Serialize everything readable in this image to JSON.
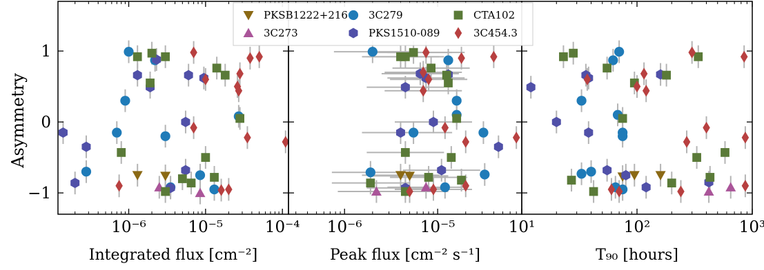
{
  "chart_data": [
    {
      "type": "scatter",
      "panel": "integrated-flux",
      "xlabel": "Integrated flux [cm⁻²]",
      "ylabel": "Asymmetry",
      "xscale": "log",
      "xlim": [
        1.2e-07,
        0.00012
      ],
      "ylim": [
        -1.3,
        1.7
      ],
      "xticks": [
        1e-06,
        1e-05,
        0.0001
      ],
      "xtick_labels": [
        "10⁻⁶",
        "10⁻⁵",
        "10⁻⁴"
      ],
      "yticks": [
        -1,
        0,
        1
      ],
      "ytick_labels": [
        "−1",
        "0",
        "1"
      ],
      "series": [
        {
          "name": "PKSB1222+216",
          "points": [
            [
              1.3e-06,
              -0.75
            ],
            [
              3e-06,
              -0.76
            ]
          ]
        },
        {
          "name": "3C273",
          "points": [
            [
              2.5e-06,
              -0.92
            ],
            [
              8.5e-06,
              -1.0
            ]
          ]
        },
        {
          "name": "3C279",
          "points": [
            [
              1e-06,
              0.99
            ],
            [
              2.2e-06,
              0.87
            ],
            [
              9e-07,
              0.3
            ],
            [
              7e-07,
              -0.15
            ],
            [
              3e-06,
              -0.2
            ],
            [
              2.8e-07,
              -0.7
            ],
            [
              3.5e-06,
              -0.92
            ],
            [
              8.5e-06,
              -0.75
            ],
            [
              1.3e-05,
              -0.95
            ],
            [
              2.7e-05,
              0.08
            ]
          ]
        },
        {
          "name": "PKS1510-089",
          "points": [
            [
              1.4e-07,
              -0.15
            ],
            [
              2e-07,
              -0.86
            ],
            [
              2.8e-07,
              -0.35
            ],
            [
              1.3e-06,
              0.66
            ],
            [
              1.9e-06,
              0.49
            ],
            [
              2.3e-06,
              0.88
            ],
            [
              6e-06,
              0.66
            ],
            [
              9.5e-06,
              0.62
            ],
            [
              5.5e-06,
              0.0
            ],
            [
              5.5e-06,
              -0.68
            ],
            [
              3.5e-06,
              -0.93
            ]
          ]
        },
        {
          "name": "CTA102",
          "points": [
            [
              1.3e-06,
              0.92
            ],
            [
              2e-06,
              0.97
            ],
            [
              3e-06,
              0.92
            ],
            [
              1.9e-06,
              0.55
            ],
            [
              8e-07,
              -0.43
            ],
            [
              3e-06,
              -0.98
            ],
            [
              5e-06,
              -0.8
            ],
            [
              6.5e-06,
              -0.86
            ],
            [
              1e-05,
              -0.5
            ],
            [
              1.3e-05,
              -0.78
            ],
            [
              1.4e-05,
              0.76
            ],
            [
              1.8e-05,
              0.66
            ],
            [
              2.8e-05,
              0.05
            ]
          ]
        },
        {
          "name": "3C454.3",
          "points": [
            [
              7.5e-07,
              -0.9
            ],
            [
              7e-06,
              0.98
            ],
            [
              1e-05,
              0.6
            ],
            [
              7e-06,
              -0.08
            ],
            [
              1.6e-05,
              -0.96
            ],
            [
              2e-05,
              -0.95
            ],
            [
              2.6e-05,
              0.5
            ],
            [
              2.7e-05,
              0.44
            ],
            [
              2.8e-05,
              0.68
            ],
            [
              3.8e-05,
              0.9
            ],
            [
              5e-05,
              0.92
            ],
            [
              3.5e-05,
              -0.22
            ],
            [
              0.00011,
              -0.28
            ]
          ]
        }
      ]
    },
    {
      "type": "scatter",
      "panel": "peak-flux",
      "xlabel": "Peak flux [cm⁻² s⁻¹]",
      "xscale": "log",
      "xlim": [
        2.5e-07,
        8e-05
      ],
      "ylim": [
        -1.3,
        1.7
      ],
      "xticks": [
        1e-06,
        1e-05
      ],
      "xtick_labels": [
        "10⁻⁶",
        "10⁻⁵"
      ],
      "series": [
        {
          "name": "PKSB1222+216",
          "points": [
            [
              4e-06,
              -0.75
            ],
            [
              5e-06,
              -0.76
            ]
          ]
        },
        {
          "name": "3C273",
          "points": [
            [
              2.2e-06,
              -0.98
            ],
            [
              7.5e-06,
              -0.92
            ]
          ]
        },
        {
          "name": "3C279",
          "points": [
            [
              2e-06,
              0.99
            ],
            [
              1.3e-05,
              0.87
            ],
            [
              1.6e-05,
              0.3
            ],
            [
              5.5e-06,
              -0.15
            ],
            [
              3.1e-05,
              -0.15
            ],
            [
              1.9e-06,
              -0.71
            ],
            [
              3.2e-05,
              -0.74
            ],
            [
              1.2e-05,
              -0.92
            ],
            [
              1.6e-05,
              0.1
            ]
          ]
        },
        {
          "name": "PKS1510-089",
          "points": [
            [
              4.5e-06,
              0.49
            ],
            [
              6.5e-06,
              0.68
            ],
            [
              7.5e-06,
              0.62
            ],
            [
              1.3e-05,
              0.67
            ],
            [
              4e-06,
              -0.15
            ],
            [
              9e-06,
              -0.0
            ],
            [
              4.5e-05,
              -0.35
            ],
            [
              1.1e-05,
              -0.68
            ],
            [
              4.5e-06,
              -0.93
            ]
          ]
        },
        {
          "name": "CTA102",
          "points": [
            [
              4e-06,
              0.92
            ],
            [
              4.5e-06,
              0.92
            ],
            [
              5.5e-06,
              0.98
            ],
            [
              8.5e-06,
              0.76
            ],
            [
              1.25e-05,
              0.66
            ],
            [
              1.3e-05,
              0.55
            ],
            [
              1.6e-05,
              0.05
            ],
            [
              4.5e-06,
              -0.43
            ],
            [
              1.4e-05,
              -0.5
            ],
            [
              8e-06,
              -0.78
            ],
            [
              1.8e-05,
              -0.82
            ],
            [
              1.9e-06,
              -0.86
            ],
            [
              4.5e-06,
              -0.98
            ]
          ]
        },
        {
          "name": "3C454.3",
          "points": [
            [
              7.5e-06,
              0.98
            ],
            [
              7e-06,
              0.7
            ],
            [
              8e-06,
              0.6
            ],
            [
              7e-06,
              0.44
            ],
            [
              1.2e-05,
              -0.08
            ],
            [
              1.8e-05,
              0.9
            ],
            [
              4e-05,
              0.92
            ],
            [
              2e-05,
              -0.28
            ],
            [
              7e-05,
              -0.22
            ],
            [
              2e-05,
              -0.9
            ],
            [
              5e-06,
              -0.98
            ],
            [
              9e-06,
              -0.95
            ]
          ]
        }
      ]
    },
    {
      "type": "scatter",
      "panel": "t90",
      "xlabel": "T₉₀ [hours]",
      "xscale": "log",
      "xlim": [
        10,
        1000
      ],
      "ylim": [
        -1.3,
        1.7
      ],
      "xticks": [
        10,
        100,
        1000
      ],
      "xtick_labels": [
        "10¹",
        "10²",
        "10³"
      ],
      "series": [
        {
          "name": "PKSB1222+216",
          "points": [
            [
              75,
              -0.77
            ],
            [
              95,
              -0.75
            ],
            [
              160,
              -0.75
            ]
          ]
        },
        {
          "name": "3C273",
          "points": [
            [
              420,
              -0.98
            ],
            [
              650,
              -0.92
            ]
          ]
        },
        {
          "name": "3C279",
          "points": [
            [
              70,
              0.99
            ],
            [
              62,
              0.87
            ],
            [
              33,
              0.3
            ],
            [
              68,
              0.1
            ],
            [
              75,
              -0.15
            ],
            [
              40,
              -0.7
            ],
            [
              33,
              -0.73
            ],
            [
              75,
              -0.2
            ],
            [
              65,
              -0.92
            ],
            [
              75,
              -0.95
            ]
          ]
        },
        {
          "name": "PKS1510-089",
          "points": [
            [
              12,
              0.49
            ],
            [
              20,
              0.0
            ],
            [
              36,
              0.66
            ],
            [
              38,
              0.62
            ],
            [
              38,
              -0.15
            ],
            [
              55,
              -0.68
            ],
            [
              80,
              -0.75
            ],
            [
              120,
              -0.92
            ],
            [
              420,
              -0.85
            ],
            [
              160,
              0.67
            ]
          ]
        },
        {
          "name": "CTA102",
          "points": [
            [
              23,
              0.92
            ],
            [
              28,
              0.97
            ],
            [
              55,
              0.76
            ],
            [
              75,
              0.05
            ],
            [
              95,
              0.55
            ],
            [
              180,
              0.66
            ],
            [
              340,
              0.92
            ],
            [
              330,
              -0.5
            ],
            [
              430,
              -0.78
            ],
            [
              580,
              -0.43
            ],
            [
              200,
              -0.86
            ],
            [
              27,
              -0.82
            ],
            [
              42,
              -0.98
            ]
          ]
        },
        {
          "name": "3C454.3",
          "points": [
            [
              37,
              0.6
            ],
            [
              100,
              0.5
            ],
            [
              115,
              0.68
            ],
            [
              120,
              0.44
            ],
            [
              60,
              -0.95
            ],
            [
              70,
              -0.98
            ],
            [
              300,
              0.98
            ],
            [
              400,
              -0.08
            ],
            [
              270,
              -0.28
            ],
            [
              240,
              -0.98
            ],
            [
              850,
              0.92
            ],
            [
              870,
              -0.22
            ],
            [
              870,
              -0.9
            ]
          ]
        }
      ]
    }
  ],
  "legend": {
    "placement": "top-center",
    "entries": [
      {
        "name": "PKSB1222+216",
        "marker": "triangle-down",
        "color": "#8B6914"
      },
      {
        "name": "3C273",
        "marker": "triangle-up",
        "color": "#AA5599"
      },
      {
        "name": "3C279",
        "marker": "circle",
        "color": "#1F7BB8"
      },
      {
        "name": "PKS1510-089",
        "marker": "hexagon",
        "color": "#5050A8"
      },
      {
        "name": "CTA102",
        "marker": "square",
        "color": "#5A7A38"
      },
      {
        "name": "3C454.3",
        "marker": "diamond",
        "color": "#B84040"
      }
    ]
  }
}
